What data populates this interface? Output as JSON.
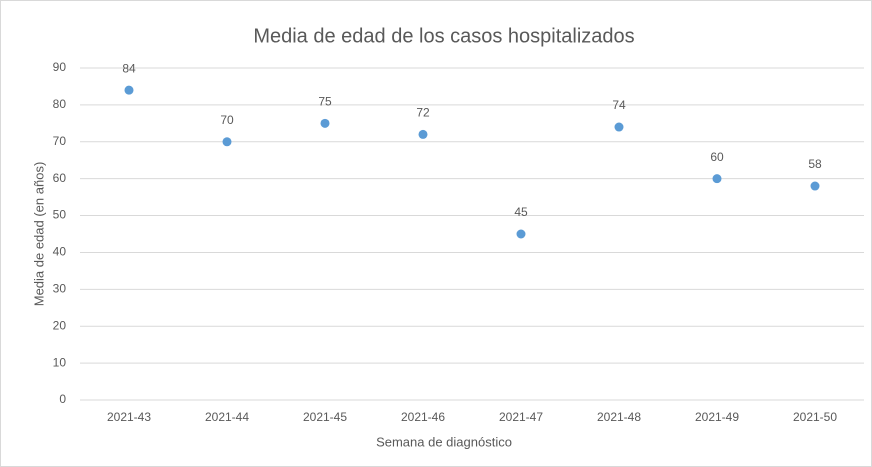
{
  "chart_data": {
    "type": "scatter",
    "title": "Media de edad de los casos hospitalizados",
    "x_label": "Semana de diagnóstico",
    "y_label": "Media de edad (en años)",
    "categories": [
      "2021-43",
      "2021-44",
      "2021-45",
      "2021-46",
      "2021-47",
      "2021-48",
      "2021-49",
      "2021-50"
    ],
    "values": [
      84,
      70,
      75,
      72,
      45,
      74,
      60,
      58
    ],
    "color": "#5b9bd5",
    "ylim": [
      0,
      90
    ],
    "yticks": [
      0,
      10,
      20,
      30,
      40,
      50,
      60,
      70,
      80,
      90
    ],
    "grid": true
  }
}
